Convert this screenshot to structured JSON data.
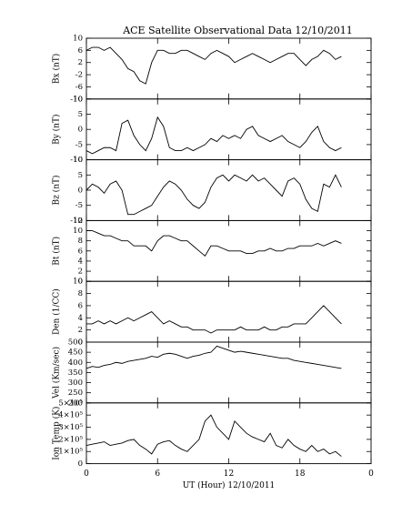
{
  "chart_data": [
    {
      "type": "line",
      "title": "ACE Satellite Observational Data   12/10/2011",
      "y_label": "Bx (nT)",
      "color": "#000000",
      "xlim": [
        0,
        24
      ],
      "xticks": [
        0,
        6,
        12,
        18,
        {
          "value": 24,
          "label": "0"
        }
      ],
      "ylim": [
        -10,
        10
      ],
      "yticks": [
        -10,
        -6,
        -2,
        2,
        6,
        10
      ],
      "x": [
        0,
        0.5,
        1,
        1.5,
        2,
        2.5,
        3,
        3.5,
        4,
        4.5,
        5,
        5.5,
        6,
        6.5,
        7,
        7.5,
        8,
        8.5,
        9,
        9.5,
        10,
        10.5,
        11,
        11.5,
        12,
        12.5,
        13,
        13.5,
        14,
        14.5,
        15,
        15.5,
        16,
        16.5,
        17,
        17.5,
        18,
        18.5,
        19,
        19.5,
        20,
        20.5,
        21,
        21.5
      ],
      "values": [
        6,
        7,
        7,
        6,
        7,
        5,
        3,
        0,
        -1,
        -4,
        -5,
        2,
        6,
        6,
        5,
        5,
        6,
        6,
        5,
        4,
        3,
        5,
        6,
        5,
        4,
        2,
        3,
        4,
        5,
        4,
        3,
        2,
        3,
        4,
        5,
        5,
        3,
        1,
        3,
        4,
        6,
        5,
        3,
        4
      ]
    },
    {
      "type": "line",
      "y_label": "By (nT)",
      "color": "#000000",
      "xlim": [
        0,
        24
      ],
      "xticks": [
        0,
        6,
        12,
        18,
        {
          "value": 24,
          "label": "0"
        }
      ],
      "ylim": [
        -10,
        10
      ],
      "yticks": [
        -10,
        -5,
        0,
        5,
        10
      ],
      "x": [
        0,
        0.5,
        1,
        1.5,
        2,
        2.5,
        3,
        3.5,
        4,
        4.5,
        5,
        5.5,
        6,
        6.5,
        7,
        7.5,
        8,
        8.5,
        9,
        9.5,
        10,
        10.5,
        11,
        11.5,
        12,
        12.5,
        13,
        13.5,
        14,
        14.5,
        15,
        15.5,
        16,
        16.5,
        17,
        17.5,
        18,
        18.5,
        19,
        19.5,
        20,
        20.5,
        21,
        21.5
      ],
      "values": [
        -7,
        -8,
        -7,
        -6,
        -6,
        -7,
        2,
        3,
        -2,
        -5,
        -7,
        -3,
        4,
        1,
        -6,
        -7,
        -7,
        -6,
        -7,
        -6,
        -5,
        -3,
        -4,
        -2,
        -3,
        -2,
        -3,
        0,
        1,
        -2,
        -3,
        -4,
        -3,
        -2,
        -4,
        -5,
        -6,
        -4,
        -1,
        1,
        -4,
        -6,
        -7,
        -6
      ]
    },
    {
      "type": "line",
      "y_label": "Bz (nT)",
      "color": "#000000",
      "xlim": [
        0,
        24
      ],
      "xticks": [
        0,
        6,
        12,
        18,
        {
          "value": 24,
          "label": "0"
        }
      ],
      "ylim": [
        -10,
        10
      ],
      "yticks": [
        -10,
        -5,
        0,
        5,
        10
      ],
      "x": [
        0,
        0.5,
        1,
        1.5,
        2,
        2.5,
        3,
        3.5,
        4,
        4.5,
        5,
        5.5,
        6,
        6.5,
        7,
        7.5,
        8,
        8.5,
        9,
        9.5,
        10,
        10.5,
        11,
        11.5,
        12,
        12.5,
        13,
        13.5,
        14,
        14.5,
        15,
        15.5,
        16,
        16.5,
        17,
        17.5,
        18,
        18.5,
        19,
        19.5,
        20,
        20.5,
        21,
        21.5
      ],
      "values": [
        0,
        2,
        1,
        -1,
        2,
        3,
        0,
        -8,
        -8,
        -7,
        -6,
        -5,
        -2,
        1,
        3,
        2,
        0,
        -3,
        -5,
        -6,
        -4,
        1,
        4,
        5,
        3,
        5,
        4,
        3,
        5,
        3,
        4,
        2,
        0,
        -2,
        3,
        4,
        2,
        -3,
        -6,
        -7,
        2,
        1,
        5,
        1
      ]
    },
    {
      "type": "line",
      "y_label": "Bt (nT)",
      "color": "#000000",
      "xlim": [
        0,
        24
      ],
      "xticks": [
        0,
        6,
        12,
        18,
        {
          "value": 24,
          "label": "0"
        }
      ],
      "ylim": [
        0,
        12
      ],
      "yticks": [
        0,
        2,
        4,
        6,
        8,
        10,
        12
      ],
      "x": [
        0,
        0.5,
        1,
        1.5,
        2,
        2.5,
        3,
        3.5,
        4,
        4.5,
        5,
        5.5,
        6,
        6.5,
        7,
        7.5,
        8,
        8.5,
        9,
        9.5,
        10,
        10.5,
        11,
        11.5,
        12,
        12.5,
        13,
        13.5,
        14,
        14.5,
        15,
        15.5,
        16,
        16.5,
        17,
        17.5,
        18,
        18.5,
        19,
        19.5,
        20,
        20.5,
        21,
        21.5
      ],
      "values": [
        10,
        10,
        9.5,
        9,
        9,
        8.5,
        8,
        8,
        7,
        7,
        7,
        6,
        8,
        9,
        9,
        8.5,
        8,
        8,
        7,
        6,
        5,
        7,
        7,
        6.5,
        6,
        6,
        6,
        5.5,
        5.5,
        6,
        6,
        6.5,
        6,
        6,
        6.5,
        6.5,
        7,
        7,
        7,
        7.5,
        7,
        7.5,
        8,
        7.5
      ]
    },
    {
      "type": "line",
      "y_label": "Den (1/CC)",
      "color": "#000000",
      "xlim": [
        0,
        24
      ],
      "xticks": [
        0,
        6,
        12,
        18,
        {
          "value": 24,
          "label": "0"
        }
      ],
      "ylim": [
        0,
        10
      ],
      "yticks": [
        0,
        2,
        4,
        6,
        8,
        10
      ],
      "x": [
        0,
        0.5,
        1,
        1.5,
        2,
        2.5,
        3,
        3.5,
        4,
        4.5,
        5,
        5.5,
        6,
        6.5,
        7,
        7.5,
        8,
        8.5,
        9,
        9.5,
        10,
        10.5,
        11,
        11.5,
        12,
        12.5,
        13,
        13.5,
        14,
        14.5,
        15,
        15.5,
        16,
        16.5,
        17,
        17.5,
        18,
        18.5,
        19,
        19.5,
        20,
        20.5,
        21,
        21.5
      ],
      "values": [
        3,
        3,
        3.5,
        3,
        3.5,
        3,
        3.5,
        4,
        3.5,
        4,
        4.5,
        5,
        4,
        3,
        3.5,
        3,
        2.5,
        2.5,
        2,
        2,
        2,
        1.5,
        2,
        2,
        2,
        2,
        2.5,
        2,
        2,
        2,
        2.5,
        2,
        2,
        2.5,
        2.5,
        3,
        3,
        3,
        4,
        5,
        6,
        5,
        4,
        3
      ]
    },
    {
      "type": "line",
      "y_label": "Vel (Km/sec)",
      "color": "#000000",
      "xlim": [
        0,
        24
      ],
      "xticks": [
        0,
        6,
        12,
        18,
        {
          "value": 24,
          "label": "0"
        }
      ],
      "ylim": [
        200,
        500
      ],
      "yticks": [
        200,
        250,
        300,
        350,
        400,
        450,
        500
      ],
      "x": [
        0,
        0.5,
        1,
        1.5,
        2,
        2.5,
        3,
        3.5,
        4,
        4.5,
        5,
        5.5,
        6,
        6.5,
        7,
        7.5,
        8,
        8.5,
        9,
        9.5,
        10,
        10.5,
        11,
        11.5,
        12,
        12.5,
        13,
        13.5,
        14,
        14.5,
        15,
        15.5,
        16,
        16.5,
        17,
        17.5,
        18,
        18.5,
        19,
        19.5,
        20,
        20.5,
        21,
        21.5
      ],
      "values": [
        370,
        380,
        375,
        385,
        390,
        400,
        395,
        405,
        410,
        415,
        420,
        430,
        425,
        440,
        445,
        440,
        430,
        420,
        430,
        435,
        445,
        450,
        480,
        470,
        460,
        450,
        455,
        450,
        445,
        440,
        435,
        430,
        425,
        420,
        420,
        410,
        405,
        400,
        395,
        390,
        385,
        380,
        375,
        370
      ]
    },
    {
      "type": "line",
      "y_label": "Ion Temp (K)",
      "x_label": "UT (Hour)   12/10/2011",
      "color": "#000000",
      "xlim": [
        0,
        24
      ],
      "xticks": [
        0,
        6,
        12,
        18,
        {
          "value": 24,
          "label": "0"
        }
      ],
      "ylim": [
        0,
        500000
      ],
      "yticks": [
        0,
        {
          "value": 100000,
          "label": "1×10⁵"
        },
        {
          "value": 200000,
          "label": "2×10⁵"
        },
        {
          "value": 300000,
          "label": "3×10⁵"
        },
        {
          "value": 400000,
          "label": "4×10⁵"
        },
        {
          "value": 500000,
          "label": "5×10⁵"
        }
      ],
      "x": [
        0,
        0.5,
        1,
        1.5,
        2,
        2.5,
        3,
        3.5,
        4,
        4.5,
        5,
        5.5,
        6,
        6.5,
        7,
        7.5,
        8,
        8.5,
        9,
        9.5,
        10,
        10.5,
        11,
        11.5,
        12,
        12.5,
        13,
        13.5,
        14,
        14.5,
        15,
        15.5,
        16,
        16.5,
        17,
        17.5,
        18,
        18.5,
        19,
        19.5,
        20,
        20.5,
        21,
        21.5
      ],
      "values": [
        150000,
        160000,
        170000,
        180000,
        150000,
        160000,
        170000,
        190000,
        200000,
        150000,
        120000,
        80000,
        160000,
        180000,
        190000,
        150000,
        120000,
        100000,
        150000,
        200000,
        350000,
        400000,
        300000,
        250000,
        200000,
        350000,
        300000,
        250000,
        220000,
        200000,
        180000,
        250000,
        150000,
        130000,
        200000,
        150000,
        120000,
        100000,
        150000,
        100000,
        120000,
        80000,
        100000,
        60000
      ]
    }
  ]
}
